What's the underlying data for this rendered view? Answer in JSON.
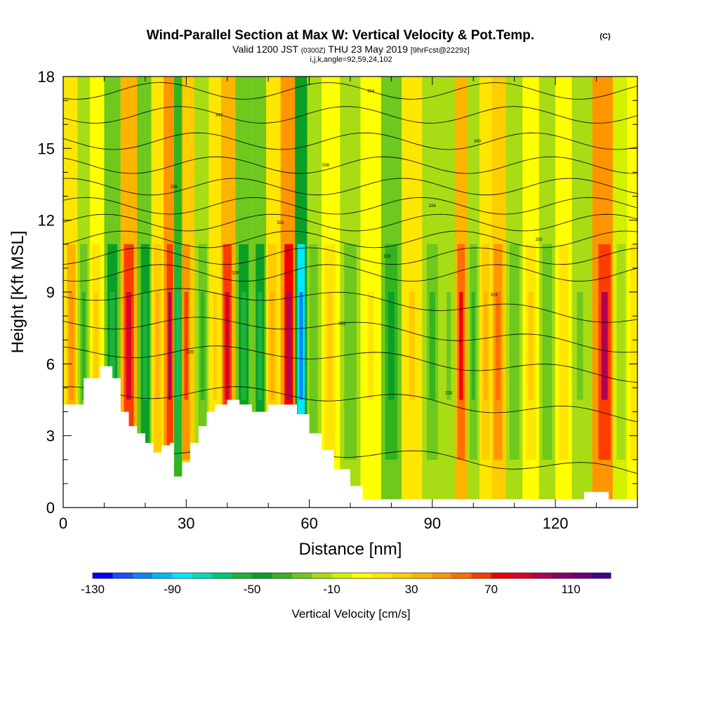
{
  "header": {
    "title": "Wind-Parallel Section at Max W: Vertical Velocity & Pot.Temp.",
    "copyright": "(C)",
    "valid_prefix": "Valid 1200 JST",
    "valid_utc": "(0300Z)",
    "valid_date": "THU 23 May 2019",
    "forecast": "[9hrFcst@2229z]",
    "indices": "i,j,k,angle=92,59,24,102"
  },
  "chart_data": {
    "type": "heatmap",
    "xlabel": "Distance [nm]",
    "ylabel": "Height [Kft MSL]",
    "xlim": [
      0,
      140
    ],
    "ylim": [
      0,
      18
    ],
    "x_ticks": [
      "0",
      "30",
      "60",
      "90",
      "120"
    ],
    "y_ticks": [
      "0",
      "3",
      "6",
      "9",
      "12",
      "15",
      "18"
    ],
    "colorbar": {
      "label": "Vertical Velocity [cm/s]",
      "tick_labels": [
        "-130",
        "-90",
        "-50",
        "-10",
        "30",
        "70",
        "110"
      ],
      "levels": [
        -130,
        -120,
        -110,
        -100,
        -90,
        -80,
        -70,
        -60,
        -50,
        -40,
        -30,
        -20,
        -10,
        0,
        10,
        20,
        30,
        40,
        50,
        60,
        70,
        80,
        90,
        100,
        110,
        120
      ],
      "colors": [
        "#0000ff",
        "#1b4fff",
        "#0a86ff",
        "#00b8ff",
        "#00e8ff",
        "#00dcb4",
        "#00c878",
        "#1eb43c",
        "#0aa028",
        "#33b41e",
        "#6ec81e",
        "#a8dc14",
        "#d2f000",
        "#ffff00",
        "#ffe600",
        "#ffcd00",
        "#ffb400",
        "#ff9600",
        "#ff6e00",
        "#ff3c00",
        "#f00000",
        "#dc0028",
        "#b40050",
        "#8c0064",
        "#6e0078",
        "#46008c"
      ]
    },
    "terrain_profile": {
      "x": [
        0,
        5,
        9,
        12,
        14,
        16,
        18,
        20,
        22,
        24,
        26,
        27,
        29,
        31,
        33,
        35,
        37,
        40,
        43,
        46,
        50,
        53,
        55,
        57,
        60,
        63,
        66,
        70,
        73,
        80,
        90,
        100,
        110,
        125,
        127,
        130,
        133,
        140
      ],
      "y": [
        4.3,
        5.4,
        5.9,
        5.4,
        4.0,
        3.4,
        3.1,
        2.7,
        2.3,
        2.6,
        2.7,
        1.3,
        1.9,
        2.7,
        3.4,
        4.0,
        4.3,
        4.5,
        4.3,
        4.0,
        4.3,
        4.3,
        4.3,
        3.9,
        3.1,
        2.4,
        1.6,
        0.9,
        0.35,
        0.35,
        0.35,
        0.35,
        0.35,
        0.35,
        0.65,
        0.65,
        0.35,
        0.35
      ]
    },
    "vertical_velocity_bands": [
      {
        "x": 2,
        "w": 40
      },
      {
        "x": 5,
        "w": -35
      },
      {
        "x": 8,
        "w": 20
      },
      {
        "x": 12,
        "w": -60
      },
      {
        "x": 16,
        "w": 80
      },
      {
        "x": 20,
        "w": -55
      },
      {
        "x": 23,
        "w": 30
      },
      {
        "x": 26,
        "w": 90
      },
      {
        "x": 28,
        "w": -70
      },
      {
        "x": 30,
        "w": 60
      },
      {
        "x": 34,
        "w": -35
      },
      {
        "x": 37,
        "w": 25
      },
      {
        "x": 40,
        "w": 85
      },
      {
        "x": 44,
        "w": -60
      },
      {
        "x": 48,
        "w": -55
      },
      {
        "x": 51,
        "w": 30
      },
      {
        "x": 55,
        "w": 95
      },
      {
        "x": 58,
        "w": -110
      },
      {
        "x": 61,
        "w": -30
      },
      {
        "x": 65,
        "w": 20
      },
      {
        "x": 70,
        "w": -30
      },
      {
        "x": 75,
        "w": 10
      },
      {
        "x": 80,
        "w": -45
      },
      {
        "x": 85,
        "w": 25
      },
      {
        "x": 90,
        "w": -40
      },
      {
        "x": 94,
        "w": -25
      },
      {
        "x": 97,
        "w": 75
      },
      {
        "x": 100,
        "w": -40
      },
      {
        "x": 103,
        "w": 35
      },
      {
        "x": 106,
        "w": 55
      },
      {
        "x": 110,
        "w": -30
      },
      {
        "x": 114,
        "w": 20
      },
      {
        "x": 118,
        "w": -30
      },
      {
        "x": 122,
        "w": 15
      },
      {
        "x": 126,
        "w": -25
      },
      {
        "x": 132,
        "w": 90
      },
      {
        "x": 136,
        "w": -20
      },
      {
        "x": 139,
        "w": 15
      }
    ],
    "isentrope_labels": [
      "315",
      "316",
      "318",
      "320",
      "322",
      "324",
      "326",
      "328",
      "330",
      "332",
      "334",
      "336",
      "338",
      "340",
      "342",
      "344"
    ],
    "isentrope_levels_kft": [
      0.5,
      2.5,
      4.8,
      6.5,
      7.7,
      8.9,
      9.8,
      10.5,
      11.2,
      11.9,
      12.6,
      13.4,
      14.3,
      15.3,
      16.4,
      17.4
    ]
  }
}
